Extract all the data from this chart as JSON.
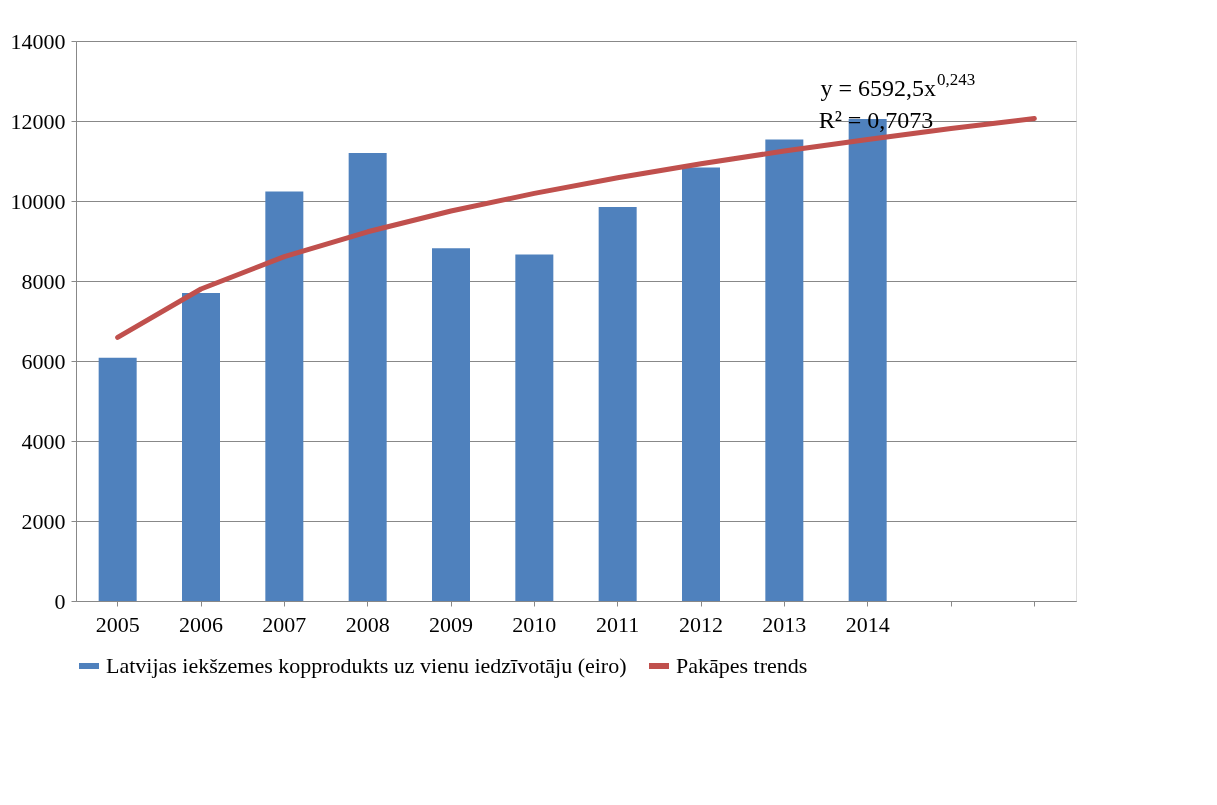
{
  "chart_data": {
    "type": "bar",
    "categories": [
      "2005",
      "2006",
      "2007",
      "2008",
      "2009",
      "2010",
      "2011",
      "2012",
      "2013",
      "2014",
      null,
      null
    ],
    "series": [
      {
        "name": "Latvijas iekšzemes kopprodukts uz vienu iedzīvotāju (eiro)",
        "color": "#4f81bd",
        "values": [
          6080,
          7700,
          10240,
          11200,
          8820,
          8660,
          9850,
          10840,
          11540,
          12050,
          null,
          null
        ]
      },
      {
        "name": "Pakāpes trends",
        "type": "line",
        "color": "#c0504d",
        "values": [
          6590,
          7800,
          8610,
          9230,
          9750,
          10190,
          10580,
          10930,
          11250,
          11540,
          11810,
          12060
        ]
      }
    ],
    "ylim": [
      0,
      14000
    ],
    "yticks": [
      0,
      2000,
      4000,
      6000,
      8000,
      10000,
      12000,
      14000
    ],
    "grid": "y",
    "legend": "bottom",
    "annotations": [
      "y = 6592,5x$^{0,243}$",
      "R² = 0,7073"
    ]
  }
}
